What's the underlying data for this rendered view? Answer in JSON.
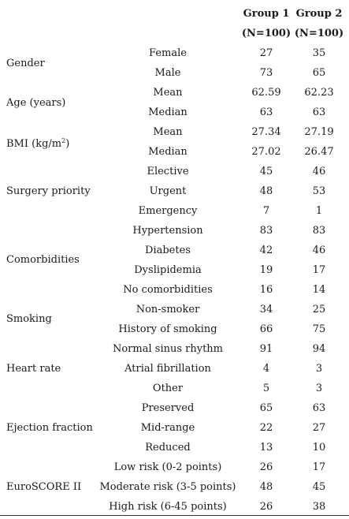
{
  "header": {
    "group1": "Group 1",
    "group2": "Group 2",
    "n1": "(N=100)",
    "n2": "(N=100)"
  },
  "categories": [
    {
      "key": "gender",
      "label": "Gender"
    },
    {
      "key": "age",
      "label": "Age (years)"
    },
    {
      "key": "bmi",
      "label": "BMI (kg/m",
      "sup": "2",
      "suffix": ")"
    },
    {
      "key": "priority",
      "label": "Surgery priority"
    },
    {
      "key": "comorb",
      "label": "Comorbidities"
    },
    {
      "key": "smoking",
      "label": "Smoking"
    },
    {
      "key": "hr",
      "label": "Heart rate"
    },
    {
      "key": "ef",
      "label": "Ejection fraction"
    },
    {
      "key": "euro",
      "label": "EuroSCORE II"
    }
  ],
  "rows": [
    {
      "sub": "Female",
      "g1": "27",
      "g2": "35"
    },
    {
      "sub": "Male",
      "g1": "73",
      "g2": "65"
    },
    {
      "sub": "Mean",
      "g1": "62.59",
      "g2": "62.23"
    },
    {
      "sub": "Median",
      "g1": "63",
      "g2": "63"
    },
    {
      "sub": "Mean",
      "g1": "27.34",
      "g2": "27.19"
    },
    {
      "sub": "Median",
      "g1": "27.02",
      "g2": "26.47"
    },
    {
      "sub": "Elective",
      "g1": "45",
      "g2": "46"
    },
    {
      "sub": "Urgent",
      "g1": "48",
      "g2": "53"
    },
    {
      "sub": "Emergency",
      "g1": "7",
      "g2": "1"
    },
    {
      "sub": "Hypertension",
      "g1": "83",
      "g2": "83"
    },
    {
      "sub": "Diabetes",
      "g1": "42",
      "g2": "46"
    },
    {
      "sub": "Dyslipidemia",
      "g1": "19",
      "g2": "17"
    },
    {
      "sub": "No comorbidities",
      "g1": "16",
      "g2": "14"
    },
    {
      "sub": "Non-smoker",
      "g1": "34",
      "g2": "25"
    },
    {
      "sub": "History of smoking",
      "g1": "66",
      "g2": "75"
    },
    {
      "sub": "Normal sinus rhythm",
      "g1": "91",
      "g2": "94"
    },
    {
      "sub": "Atrial fibrillation",
      "g1": "4",
      "g2": "3"
    },
    {
      "sub": "Other",
      "g1": "5",
      "g2": "3"
    },
    {
      "sub": "Preserved",
      "g1": "65",
      "g2": "63"
    },
    {
      "sub": "Mid-range",
      "g1": "22",
      "g2": "27"
    },
    {
      "sub": "Reduced",
      "g1": "13",
      "g2": "10"
    },
    {
      "sub": "Low risk (0-2 points)",
      "g1": "26",
      "g2": "17"
    },
    {
      "sub": "Moderate risk (3-5 points)",
      "g1": "48",
      "g2": "45"
    },
    {
      "sub": "High risk (6-45 points)",
      "g1": "26",
      "g2": "38"
    }
  ]
}
